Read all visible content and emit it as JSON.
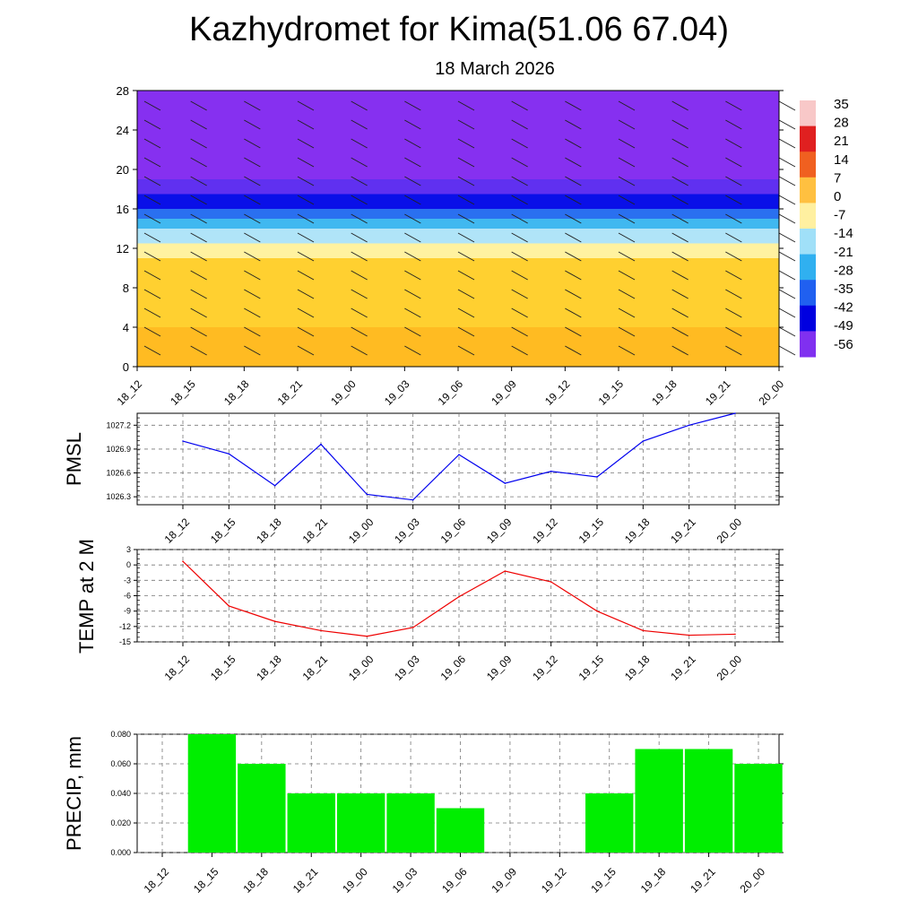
{
  "title": "Kazhydromet for Kima(51.06 67.04)",
  "subtitle": "18 March 2026",
  "chart_data": [
    {
      "type": "heatmap",
      "x_labels": [
        "18_12",
        "18_15",
        "18_18",
        "18_21",
        "19_00",
        "19_03",
        "19_06",
        "19_09",
        "19_12",
        "19_15",
        "19_18",
        "19_21",
        "20_00"
      ],
      "y_ticks": [
        0,
        4,
        8,
        12,
        16,
        20,
        24,
        28
      ],
      "ylim": [
        0,
        28
      ],
      "colorbar": {
        "labels": [
          "35",
          "28",
          "21",
          "14",
          "7",
          "0",
          "-7",
          "-14",
          "-21",
          "-28",
          "-35",
          "-42",
          "-49",
          "-56"
        ],
        "colors": [
          "#f8c8c8",
          "#e02020",
          "#f06020",
          "#ffc040",
          "#fff0a0",
          "#a0e0f8",
          "#30b0f0",
          "#2060f0",
          "#0000e0",
          "#8030f0"
        ]
      },
      "bands": [
        {
          "from": 0,
          "to": 4,
          "color": "#ffbb22"
        },
        {
          "from": 4,
          "to": 11,
          "color": "#ffd030"
        },
        {
          "from": 11,
          "to": 12.5,
          "color": "#fff2a0"
        },
        {
          "from": 12.5,
          "to": 14,
          "color": "#b0e4f8"
        },
        {
          "from": 14,
          "to": 15,
          "color": "#40b8f0"
        },
        {
          "from": 15,
          "to": 16,
          "color": "#2a70f0"
        },
        {
          "from": 16,
          "to": 17.5,
          "color": "#0a10e8"
        },
        {
          "from": 17.5,
          "to": 19,
          "color": "#6030f0"
        },
        {
          "from": 19,
          "to": 28,
          "color": "#8630f0"
        }
      ]
    },
    {
      "type": "line",
      "ylabel": "PMSL",
      "x_labels": [
        "18_12",
        "18_15",
        "18_18",
        "18_21",
        "19_00",
        "19_03",
        "19_06",
        "19_09",
        "19_12",
        "19_15",
        "19_18",
        "19_21",
        "20_00"
      ],
      "y_ticks": [
        "1026.3",
        "1026.6",
        "1026.9",
        "1027.2"
      ],
      "ylim": [
        1026.2,
        1027.35
      ],
      "series": [
        {
          "values": [
            1027.0,
            1026.84,
            1026.44,
            1026.96,
            1026.33,
            1026.26,
            1026.83,
            1026.47,
            1026.62,
            1026.55,
            1027.0,
            1027.2,
            1027.35
          ],
          "color": "#0000ee"
        }
      ]
    },
    {
      "type": "line",
      "ylabel": "TEMP at 2 M",
      "x_labels": [
        "18_12",
        "18_15",
        "18_18",
        "18_21",
        "19_00",
        "19_03",
        "19_06",
        "19_09",
        "19_12",
        "19_15",
        "19_18",
        "19_21",
        "20_00"
      ],
      "y_ticks": [
        "-15",
        "-12",
        "-9",
        "-6",
        "-3",
        "0",
        "3"
      ],
      "ylim": [
        -15,
        3
      ],
      "series": [
        {
          "values": [
            0.7,
            -8.0,
            -11.0,
            -12.8,
            -13.9,
            -12.2,
            -6.2,
            -1.2,
            -3.3,
            -9.0,
            -12.8,
            -13.7,
            -13.5
          ],
          "color": "#ee0000"
        }
      ]
    },
    {
      "type": "bar",
      "ylabel": "PRECIP, mm",
      "categories": [
        "18_12",
        "18_15",
        "18_18",
        "18_21",
        "19_00",
        "19_03",
        "19_06",
        "19_09",
        "19_12",
        "19_15",
        "19_18",
        "19_21",
        "20_00"
      ],
      "y_ticks": [
        "0.000",
        "0.020",
        "0.040",
        "0.060",
        "0.080"
      ],
      "ylim": [
        0,
        0.08
      ],
      "values": [
        0.0,
        0.08,
        0.06,
        0.04,
        0.04,
        0.04,
        0.03,
        0.0,
        0.0,
        0.04,
        0.07,
        0.07,
        0.06
      ],
      "color": "#00ee00"
    }
  ]
}
